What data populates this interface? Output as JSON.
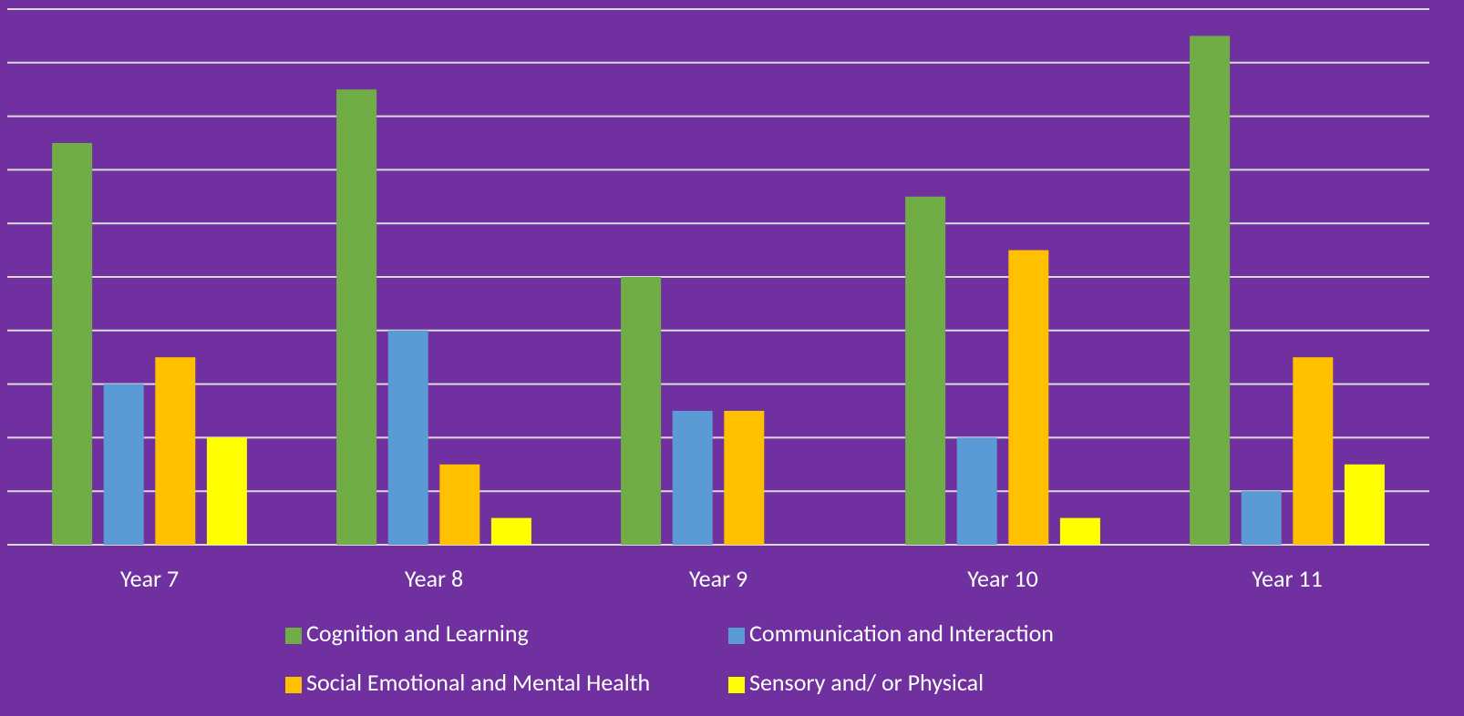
{
  "chart_data": {
    "type": "bar",
    "categories": [
      "Year 7",
      "Year 8",
      "Year 9",
      "Year 10",
      "Year 11"
    ],
    "series": [
      {
        "name": "Cognition and Learning",
        "color": "#70ad47",
        "values": [
          7.5,
          8.5,
          5,
          6.5,
          9.5
        ]
      },
      {
        "name": "Communication and Interaction",
        "color": "#5b9bd5",
        "values": [
          3,
          4,
          2.5,
          2,
          1
        ]
      },
      {
        "name": "Social Emotional and Mental Health",
        "color": "#ffc000",
        "values": [
          3.5,
          1.5,
          2.5,
          5.5,
          3.5
        ]
      },
      {
        "name": "Sensory and/ or Physical",
        "color": "#ffff00",
        "values": [
          2,
          0.5,
          0,
          0.5,
          1.5
        ]
      }
    ],
    "ylim": [
      0,
      10
    ],
    "yticks": [
      0,
      1,
      2,
      3,
      4,
      5,
      6,
      7,
      8,
      9,
      10
    ],
    "grid": true,
    "legend": "bottom"
  }
}
